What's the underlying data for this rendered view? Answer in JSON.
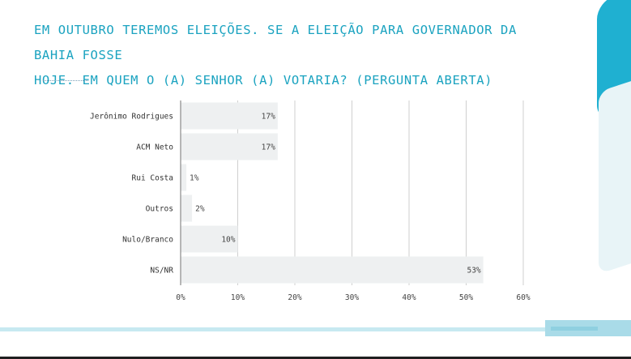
{
  "header": {
    "title_line1": "EM OUTUBRO TEREMOS ELEIÇÕES. SE A ELEIÇÃO PARA GOVERNADOR DA BAHIA FOSSE",
    "title_line2": "HOJE. EM QUEM O (A) SENHOR (A) VOTARIA? (PERGUNTA ABERTA)"
  },
  "colors": {
    "title": "#1ba3c0",
    "bar": "#eef0f1",
    "grid": "#cfcfcf",
    "accent": "#1fb0d1"
  },
  "chart_data": {
    "type": "bar",
    "orientation": "horizontal",
    "categories": [
      "Jerônimo Rodrigues",
      "ACM Neto",
      "Rui Costa",
      "Outros",
      "Nulo/Branco",
      "NS/NR"
    ],
    "values": [
      17,
      17,
      1,
      2,
      10,
      53
    ],
    "data_labels": [
      "17%",
      "17%",
      "1%",
      "2%",
      "10%",
      "53%"
    ],
    "xlim": [
      0,
      60
    ],
    "xticks": [
      0,
      10,
      20,
      30,
      40,
      50,
      60
    ],
    "xtick_labels": [
      "0%",
      "10%",
      "20%",
      "30%",
      "40%",
      "50%",
      "60%"
    ],
    "grid": true,
    "legend": "none"
  }
}
